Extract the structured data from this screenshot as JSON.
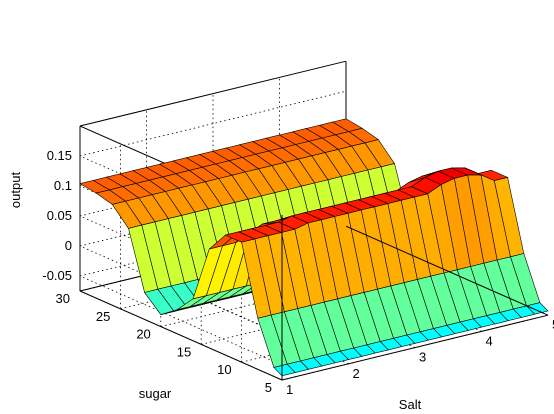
{
  "chart_data": {
    "type": "surface",
    "xlabel": "Salt",
    "ylabel": "sugar",
    "zlabel": "output",
    "x_ticks": [
      1,
      2,
      3,
      4,
      5
    ],
    "y_ticks": [
      5,
      10,
      15,
      20,
      25,
      30
    ],
    "z_ticks": [
      -0.05,
      0,
      0.05,
      0.1,
      0.15
    ],
    "x_tick_labels": [
      "1",
      "2",
      "3",
      "4",
      "5"
    ],
    "y_tick_labels": [
      "5",
      "10",
      "15",
      "20",
      "25",
      "30"
    ],
    "z_tick_labels": [
      "-0.05",
      "0",
      "0.05",
      "0.1",
      "0.15"
    ],
    "xlim": [
      1,
      5
    ],
    "ylim": [
      5,
      30
    ],
    "zlim": [
      -0.075,
      0.2
    ],
    "grid": true,
    "box": true,
    "colormap": "jet",
    "salt": [
      1.0,
      1.2,
      1.4,
      1.6,
      1.8,
      2.0,
      2.2,
      2.4,
      2.6,
      2.8,
      3.0,
      3.2,
      3.4,
      3.6,
      3.8,
      4.0,
      4.2,
      4.4,
      4.6,
      4.8,
      5.0
    ],
    "sugar": [
      30,
      28,
      26,
      24,
      22,
      20,
      18,
      16,
      14,
      12,
      10,
      8,
      6,
      5
    ],
    "output": [
      [
        0.104,
        0.104,
        0.104,
        0.104,
        0.104,
        0.104,
        0.104,
        0.104,
        0.104,
        0.104,
        0.104,
        0.104,
        0.104,
        0.104,
        0.104,
        0.104,
        0.104,
        0.104,
        0.104,
        0.104,
        0.104
      ],
      [
        0.1,
        0.1,
        0.1,
        0.1,
        0.1,
        0.1,
        0.1,
        0.1,
        0.1,
        0.1,
        0.1,
        0.1,
        0.1,
        0.1,
        0.1,
        0.1,
        0.1,
        0.1,
        0.1,
        0.1,
        0.1
      ],
      [
        0.093,
        0.093,
        0.093,
        0.093,
        0.093,
        0.093,
        0.093,
        0.093,
        0.093,
        0.093,
        0.093,
        0.093,
        0.093,
        0.093,
        0.093,
        0.093,
        0.093,
        0.093,
        0.093,
        0.093,
        0.093
      ],
      [
        0.065,
        0.065,
        0.065,
        0.065,
        0.065,
        0.065,
        0.065,
        0.065,
        0.065,
        0.065,
        0.065,
        0.065,
        0.065,
        0.065,
        0.065,
        0.065,
        0.065,
        0.065,
        0.065,
        0.065,
        0.065
      ],
      [
        -0.03,
        -0.03,
        -0.03,
        -0.03,
        -0.03,
        -0.03,
        -0.03,
        -0.03,
        -0.03,
        -0.03,
        -0.03,
        -0.03,
        -0.03,
        -0.03,
        -0.03,
        -0.03,
        -0.03,
        -0.03,
        -0.03,
        -0.03,
        -0.03
      ],
      [
        -0.055,
        -0.055,
        -0.055,
        -0.055,
        -0.055,
        -0.055,
        -0.055,
        -0.055,
        -0.055,
        -0.055,
        -0.055,
        -0.055,
        -0.055,
        -0.055,
        -0.055,
        -0.055,
        -0.055,
        -0.055,
        -0.055,
        -0.055,
        -0.055
      ],
      [
        -0.035,
        -0.035,
        -0.035,
        -0.035,
        -0.035,
        -0.035,
        -0.035,
        -0.035,
        -0.035,
        -0.035,
        -0.035,
        -0.035,
        -0.035,
        -0.035,
        -0.035,
        -0.035,
        -0.035,
        -0.035,
        -0.035,
        -0.035,
        -0.035
      ],
      [
        -0.005,
        -0.005,
        -0.005,
        -0.005,
        -0.005,
        -0.005,
        -0.005,
        -0.005,
        -0.005,
        -0.005,
        -0.005,
        -0.005,
        -0.005,
        -0.005,
        -0.005,
        -0.005,
        -0.005,
        -0.005,
        -0.005,
        -0.005,
        -0.005
      ],
      [
        0.09,
        0.09,
        0.09,
        0.1,
        0.11,
        0.11,
        0.11,
        0.11,
        0.11,
        0.11,
        0.11,
        0.11,
        0.11,
        0.11,
        0.11,
        0.12,
        0.125,
        0.125,
        0.12,
        0.09,
        0.09
      ],
      [
        0.125,
        0.125,
        0.125,
        0.125,
        0.125,
        0.13,
        0.13,
        0.13,
        0.13,
        0.13,
        0.13,
        0.13,
        0.13,
        0.13,
        0.13,
        0.14,
        0.145,
        0.145,
        0.14,
        0.125,
        0.125
      ],
      [
        0.125,
        0.125,
        0.125,
        0.125,
        0.125,
        0.13,
        0.13,
        0.13,
        0.13,
        0.13,
        0.13,
        0.13,
        0.13,
        0.13,
        0.13,
        0.14,
        0.145,
        0.145,
        0.14,
        0.125,
        0.125
      ],
      [
        0.01,
        0.01,
        0.01,
        0.01,
        0.01,
        0.01,
        0.01,
        0.01,
        0.01,
        0.01,
        0.01,
        0.01,
        0.01,
        0.01,
        0.01,
        0.01,
        0.01,
        0.01,
        0.01,
        0.01,
        0.01
      ],
      [
        -0.06,
        -0.06,
        -0.06,
        -0.06,
        -0.06,
        -0.06,
        -0.06,
        -0.06,
        -0.06,
        -0.06,
        -0.06,
        -0.06,
        -0.06,
        -0.06,
        -0.06,
        -0.06,
        -0.06,
        -0.06,
        -0.06,
        -0.06,
        -0.06
      ],
      [
        -0.068,
        -0.068,
        -0.068,
        -0.068,
        -0.068,
        -0.068,
        -0.068,
        -0.068,
        -0.068,
        -0.068,
        -0.068,
        -0.068,
        -0.068,
        -0.068,
        -0.068,
        -0.068,
        -0.068,
        -0.068,
        -0.068,
        -0.068,
        -0.068
      ]
    ]
  }
}
